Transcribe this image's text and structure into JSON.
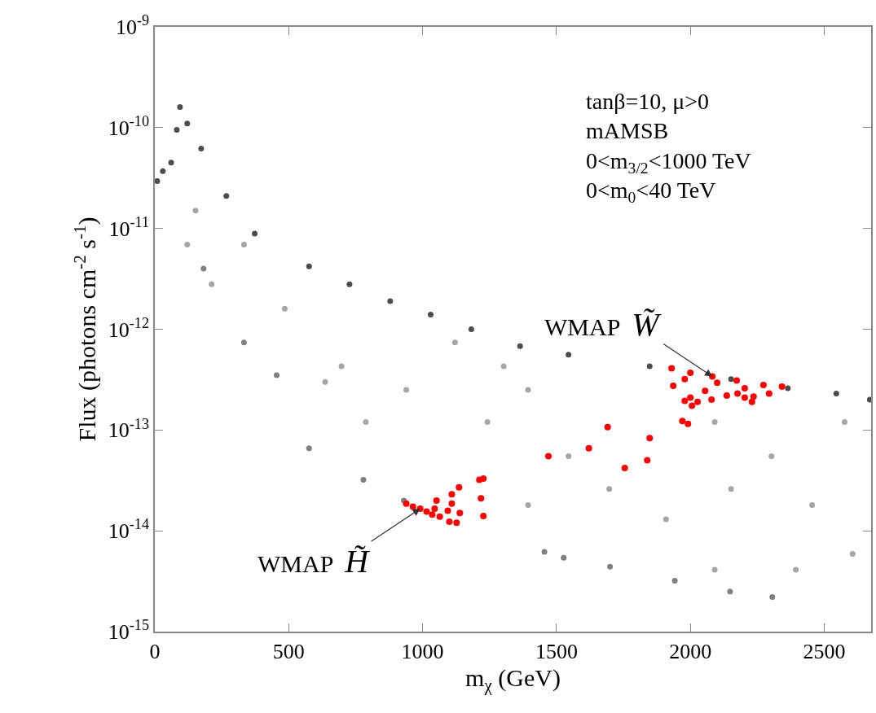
{
  "chart_data": {
    "type": "scatter",
    "xlabel": "m$_{χ}$ (GeV)",
    "ylabel": "Flux (photons cm$^{-2}$ s$^{-1}$)",
    "log": "y",
    "marker": "circle",
    "xlim": [
      0,
      2675
    ],
    "xticks": [
      0,
      500,
      1000,
      1500,
      2000,
      2500
    ],
    "ylim": [
      1e-15,
      1e-09
    ],
    "yticks": [
      {
        "value": 1e-15,
        "label": "10$^{-15}$"
      },
      {
        "value": 1e-14,
        "label": "10$^{-14}$"
      },
      {
        "value": 1e-13,
        "label": "10$^{-13}$"
      },
      {
        "value": 1e-12,
        "label": "10$^{-12}$"
      },
      {
        "value": 1e-11,
        "label": "10$^{-11}$"
      },
      {
        "value": 1e-10,
        "label": "10$^{-10}$"
      },
      {
        "value": 1e-09,
        "label": "10$^{-9}$"
      }
    ],
    "series": [
      {
        "color": "#4d4d4d",
        "x": [
          9,
          30,
          61,
          82,
          94,
          121,
          173,
          267,
          373,
          576,
          727,
          879,
          1030,
          1182,
          1364,
          1545,
          1848,
          2152,
          2364,
          2545,
          2670
        ],
        "values": [
          2.95e-11,
          3.7e-11,
          4.5e-11,
          9.5e-11,
          1.6e-10,
          1.1e-10,
          6.2e-11,
          2.1e-11,
          8.9e-12,
          4.2e-12,
          2.8e-12,
          1.9e-12,
          1.4e-12,
          1e-12,
          6.8e-13,
          5.6e-13,
          4.3e-13,
          3.2e-13,
          2.6e-13,
          2.3e-13,
          2e-13
        ]
      },
      {
        "color": "#808080",
        "x": [
          182,
          333,
          455,
          576,
          779,
          930,
          1455,
          1527,
          1700,
          1942,
          2148,
          2306
        ],
        "values": [
          4e-12,
          7.4e-13,
          3.5e-13,
          6.6e-14,
          3.2e-14,
          2e-14,
          6.2e-15,
          5.4e-15,
          4.4e-15,
          3.2e-15,
          2.5e-15,
          2.2e-15
        ]
      },
      {
        "color": "#a6a6a6",
        "x": [
          333,
          212,
          485,
          697,
          939,
          1121,
          1242,
          1394,
          1545,
          1697,
          1909,
          2152,
          2303,
          2455,
          2576,
          2394,
          2606,
          2091,
          1394,
          788,
          636,
          152,
          121,
          1303,
          2091
        ],
        "values": [
          6.9e-12,
          2.8e-12,
          1.6e-12,
          4.3e-13,
          2.5e-13,
          7.4e-13,
          1.2e-13,
          2.5e-13,
          5.5e-14,
          2.6e-14,
          1.3e-14,
          2.6e-14,
          5.5e-14,
          1.8e-14,
          1.2e-13,
          4.1e-15,
          5.9e-15,
          4.1e-15,
          1.8e-14,
          1.2e-13,
          3e-13,
          1.5e-11,
          6.9e-12,
          4.3e-13,
          1.2e-13
        ]
      },
      {
        "color": "#ff0000",
        "x": [
          939,
          964,
          991,
          1015,
          1036,
          1064,
          1052,
          1045,
          1094,
          1109,
          1139,
          1100,
          1127,
          1109,
          1136,
          1212,
          1227,
          1218,
          1227,
          1470,
          1930,
          2000,
          2082,
          2173,
          2273,
          2342,
          1979,
          2100,
          2203,
          2294,
          1936,
          2055,
          1979,
          2000,
          2006,
          2027,
          2079,
          2136,
          2176,
          2203,
          2236,
          2230,
          1970,
          1991,
          1848,
          1691,
          1621,
          1755,
          1839
        ],
        "values": [
          1.86e-14,
          1.74e-14,
          1.66e-14,
          1.55e-14,
          1.45e-14,
          1.38e-14,
          2e-14,
          1.66e-14,
          1.58e-14,
          1.86e-14,
          1.5e-14,
          1.23e-14,
          1.2e-14,
          2.3e-14,
          2.7e-14,
          3.2e-14,
          3.3e-14,
          2.1e-14,
          1.4e-14,
          5.5e-14,
          4.1e-13,
          3.7e-13,
          3.4e-13,
          3.1e-13,
          2.8e-13,
          2.7e-13,
          3.2e-13,
          2.95e-13,
          2.6e-13,
          2.3e-13,
          2.75e-13,
          2.45e-13,
          1.95e-13,
          2.1e-13,
          1.74e-13,
          1.9e-13,
          2e-13,
          2.2e-13,
          2.3e-13,
          2.1e-13,
          2.15e-13,
          1.9e-13,
          1.23e-13,
          1.15e-13,
          8.3e-14,
          1.07e-13,
          6.6e-14,
          4.2e-14,
          5e-14
        ]
      }
    ],
    "annotations": [
      "tanβ=10, μ>0",
      "mAMSB",
      "0<m$_{3/2}$<1000 TeV",
      "0<m$_{0}$<40 TeV",
      {
        "text": "WMAP W̃",
        "x": 2082,
        "y": 3.4e-13
      },
      {
        "text": "WMAP H̃",
        "x": 991,
        "y": 1.66e-14
      }
    ]
  }
}
